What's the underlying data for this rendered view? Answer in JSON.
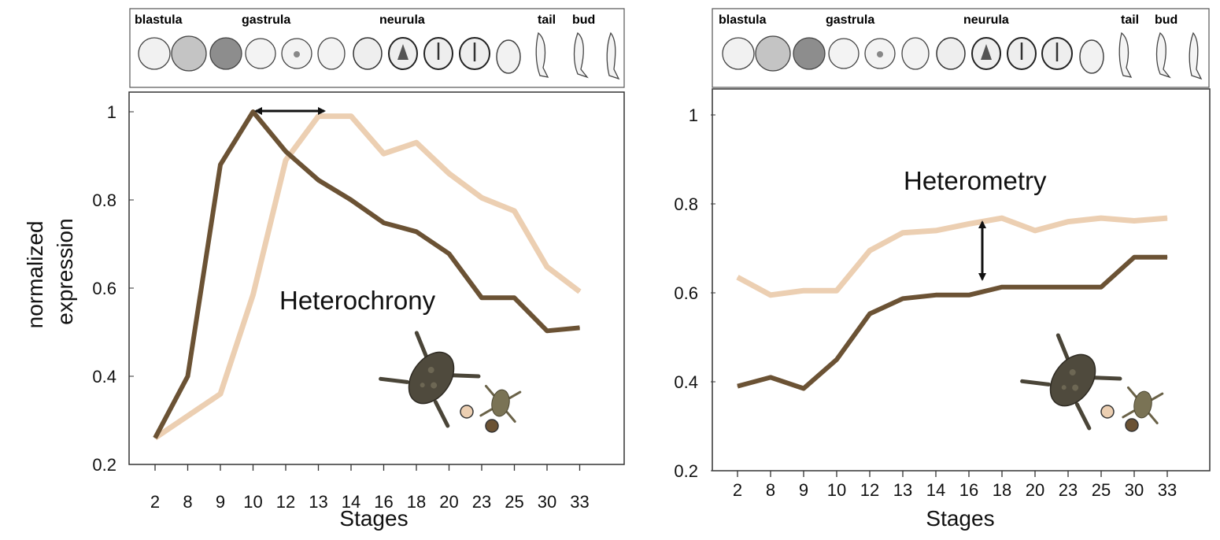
{
  "y_axis_title_lines": [
    "normalized",
    "expression"
  ],
  "panels": [
    {
      "stage_labels": [
        "blastula",
        "gastrula",
        "neurula",
        "tail",
        "bud"
      ],
      "xlabel": "Stages",
      "annotation": "Heterochrony",
      "y_ticks": [
        "0.2",
        "0.4",
        "0.6",
        "0.8",
        "1"
      ]
    },
    {
      "stage_labels": [
        "blastula",
        "gastrula",
        "neurula",
        "tail",
        "bud"
      ],
      "xlabel": "Stages",
      "annotation": "Heterometry",
      "y_ticks": [
        "0.2",
        "0.4",
        "0.6",
        "0.8",
        "1"
      ]
    }
  ],
  "colors": {
    "dark_series": "#6b5234",
    "light_series": "#eccfb2",
    "frame": "#333333"
  },
  "chart_data": [
    {
      "type": "line",
      "categories": [
        "2",
        "8",
        "9",
        "10",
        "12",
        "13",
        "14",
        "16",
        "18",
        "20",
        "23",
        "25",
        "30",
        "33"
      ],
      "series": [
        {
          "values": [
            0.26,
            0.4,
            0.88,
            1.0,
            0.91,
            0.845,
            0.8,
            0.748,
            0.728,
            0.678,
            0.578,
            0.578,
            0.503,
            0.51
          ]
        },
        {
          "values": [
            0.26,
            0.31,
            0.36,
            0.585,
            0.89,
            0.99,
            0.99,
            0.905,
            0.93,
            0.86,
            0.805,
            0.775,
            0.648,
            0.592
          ]
        }
      ],
      "xlabel": "Stages",
      "ylabel": "normalized expression",
      "ylim": [
        0.2,
        1.05
      ],
      "yticks": [
        0.2,
        0.4,
        0.6,
        0.8,
        1
      ],
      "annotations": [
        "Heterochrony"
      ],
      "grid": false
    },
    {
      "type": "line",
      "categories": [
        "2",
        "8",
        "9",
        "10",
        "12",
        "13",
        "14",
        "16",
        "18",
        "20",
        "23",
        "25",
        "30",
        "33"
      ],
      "series": [
        {
          "values": [
            0.39,
            0.41,
            0.385,
            0.45,
            0.553,
            0.587,
            0.595,
            0.595,
            0.613,
            0.613,
            0.613,
            0.613,
            0.68,
            0.68
          ]
        },
        {
          "values": [
            0.635,
            0.595,
            0.605,
            0.605,
            0.695,
            0.735,
            0.74,
            0.755,
            0.768,
            0.74,
            0.76,
            0.768,
            0.762,
            0.768
          ]
        }
      ],
      "xlabel": "Stages",
      "ylim": [
        0.2,
        1.05
      ],
      "yticks": [
        0.2,
        0.4,
        0.6,
        0.8,
        1
      ],
      "annotations": [
        "Heterometry"
      ],
      "grid": false
    }
  ]
}
